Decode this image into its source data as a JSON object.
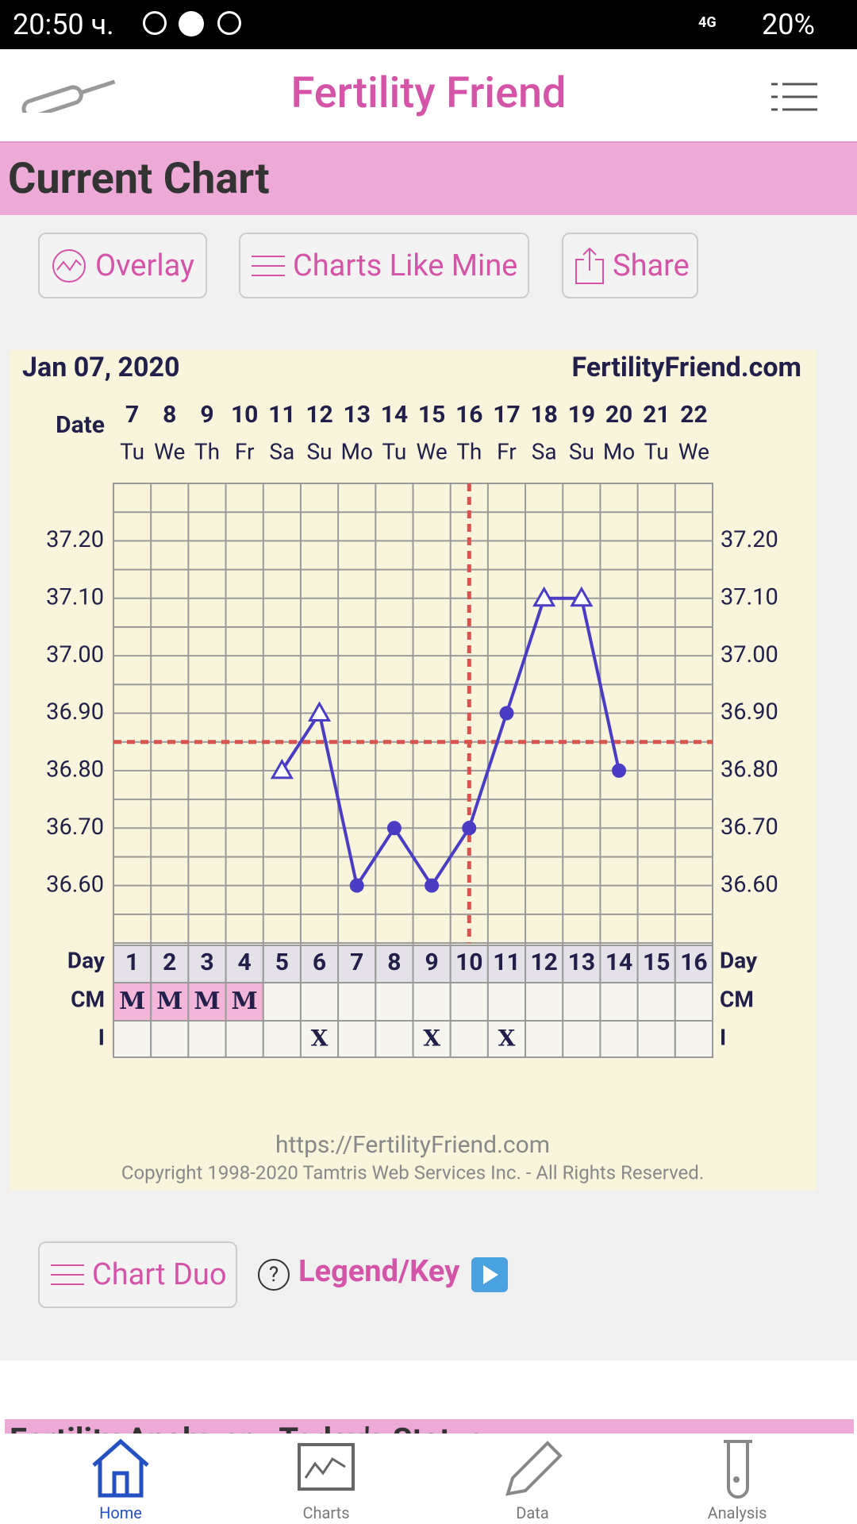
{
  "status_bar": {
    "time": "20:50 ч.",
    "network": "4G",
    "battery": "20%"
  },
  "header": {
    "title": "Fertility Friend"
  },
  "section": {
    "title": "Current Chart"
  },
  "buttons": [
    "Overlay",
    "Charts Like Mine",
    "Share"
  ],
  "chart_data": {
    "type": "line",
    "title": "Jan 07, 2020",
    "site": "FertilityFriend.com",
    "date_label": "Date",
    "categories": [
      "7",
      "8",
      "9",
      "10",
      "11",
      "12",
      "13",
      "14",
      "15",
      "16",
      "17",
      "18",
      "19",
      "20",
      "21",
      "22"
    ],
    "weekdays": [
      "Tu",
      "We",
      "Th",
      "Fr",
      "Sa",
      "Su",
      "Mo",
      "Tu",
      "We",
      "Th",
      "Fr",
      "Sa",
      "Su",
      "Mo",
      "Tu",
      "We"
    ],
    "series": [
      {
        "color": "#4b3cc4",
        "values": [
          null,
          null,
          null,
          null,
          36.8,
          36.9,
          36.6,
          36.7,
          36.6,
          36.7,
          36.9,
          37.1,
          37.1,
          36.8,
          null,
          null
        ],
        "markers": [
          null,
          null,
          null,
          null,
          "triangle",
          "triangle",
          "circle",
          "circle",
          "circle",
          "circle",
          "circle",
          "triangle",
          "triangle",
          "circle",
          null,
          null
        ]
      }
    ],
    "ylim": [
      36.5,
      37.3
    ],
    "yticks": [
      {
        "value": 36.6,
        "label": "36.60"
      },
      {
        "value": 36.7,
        "label": "36.70"
      },
      {
        "value": 36.8,
        "label": "36.80"
      },
      {
        "value": 36.9,
        "label": "36.90"
      },
      {
        "value": 37.0,
        "label": "37.00"
      },
      {
        "value": 37.1,
        "label": "37.10"
      },
      {
        "value": 37.2,
        "label": "37.20"
      }
    ],
    "grid": true,
    "coverline": 36.85,
    "coverline_color": "#d9534f",
    "day_label": "Day",
    "days": [
      1,
      2,
      3,
      4,
      5,
      6,
      7,
      8,
      9,
      10,
      11,
      12,
      13,
      14,
      15,
      16
    ],
    "ovulation_day": 10,
    "cm_label": "CM",
    "cm": [
      "M",
      "M",
      "M",
      "M",
      null,
      null,
      null,
      null,
      null,
      null,
      null,
      null,
      null,
      null,
      null,
      null
    ],
    "i_label": "I",
    "intercourse": [
      null,
      null,
      null,
      null,
      null,
      "X",
      null,
      null,
      "X",
      null,
      "X",
      null,
      null,
      null,
      null,
      null
    ],
    "url": "https://FertilityFriend.com",
    "copyright": "Copyright 1998-2020 Tamtris Web Services Inc. - All Rights Reserved."
  },
  "tools": {
    "chart_duo": "Chart Duo",
    "legend": "Legend/Key"
  },
  "next_section": {
    "title": "Fertility Analyzer - Today's Status"
  },
  "nav": [
    "Home",
    "Charts",
    "Data",
    "Analysis"
  ]
}
